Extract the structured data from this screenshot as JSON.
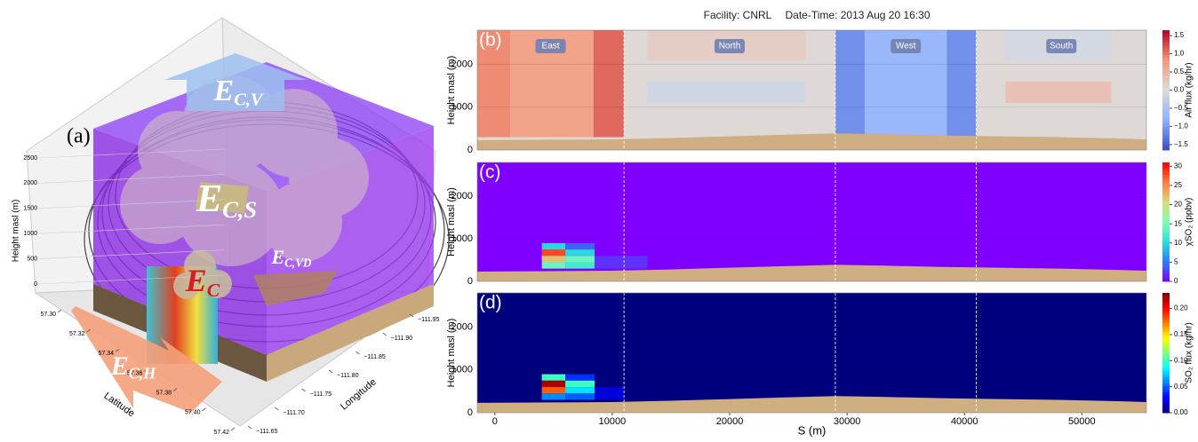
{
  "figure": {
    "facility": "Facility: CNRL",
    "datetime": "Date-Time: 2013 Aug 20 16:30"
  },
  "panel_a": {
    "label": "(a)",
    "zlabel": "Height masl (m)",
    "zticks": [
      0,
      500,
      1000,
      1500,
      2000,
      2500
    ],
    "zlim": [
      0,
      2500
    ],
    "lat_label": "Latitude",
    "lat_ticks": [
      {
        "value": 57.3,
        "label": "57.30"
      },
      {
        "value": 57.32,
        "label": "57.32"
      },
      {
        "value": 57.34,
        "label": "57.34"
      },
      {
        "value": 57.36,
        "label": "57.36"
      },
      {
        "value": 57.38,
        "label": "57.38"
      },
      {
        "value": 57.4,
        "label": "57.40"
      },
      {
        "value": 57.42,
        "label": "57.42"
      }
    ],
    "lat_lim": [
      57.3,
      57.42
    ],
    "lon_label": "Longitude",
    "lon_ticks": [
      {
        "value": -111.95,
        "label": "−111.95"
      },
      {
        "value": -111.9,
        "label": "−111.90"
      },
      {
        "value": -111.85,
        "label": "−111.85"
      },
      {
        "value": -111.8,
        "label": "−111.80"
      },
      {
        "value": -111.75,
        "label": "−111.75"
      },
      {
        "value": -111.7,
        "label": "−111.70"
      },
      {
        "value": -111.65,
        "label": "−111.65"
      }
    ],
    "lon_lim": [
      -111.95,
      -111.65
    ],
    "annotations": [
      {
        "main": "E",
        "sub": "C,V"
      },
      {
        "main": "E",
        "sub": "C,S"
      },
      {
        "main": "E",
        "sub": "C"
      },
      {
        "main": "E",
        "sub": "C,VD"
      },
      {
        "main": "E",
        "sub": "C,H"
      }
    ]
  },
  "sections": {
    "names": [
      "East",
      "North",
      "West",
      "South"
    ],
    "bounds": [
      11000,
      29000,
      41000
    ]
  },
  "terrain": {
    "x": [
      -1500,
      5000,
      10000,
      15000,
      20000,
      25000,
      29000,
      33000,
      38000,
      43000,
      48000,
      53000,
      55500
    ],
    "y": [
      230,
      240,
      250,
      280,
      320,
      360,
      390,
      370,
      340,
      320,
      300,
      270,
      250
    ]
  },
  "chart_data": [
    {
      "type": "heatmap",
      "label": "(b)",
      "ylabel": "Height masl (m)",
      "xlim": [
        -1500,
        55500
      ],
      "ylim": [
        0,
        2800
      ],
      "yticks": [
        0,
        1000,
        2000
      ],
      "grid": true,
      "background_value": 0.05,
      "cells": [
        {
          "x": [
            -1500,
            1300
          ],
          "y": [
            300,
            2800
          ],
          "value": 0.9
        },
        {
          "x": [
            1300,
            8400
          ],
          "y": [
            300,
            2800
          ],
          "value": 0.7
        },
        {
          "x": [
            8400,
            11000
          ],
          "y": [
            300,
            2800
          ],
          "value": 1.1
        },
        {
          "x": [
            13000,
            26500
          ],
          "y": [
            1100,
            1600
          ],
          "value": -0.15
        },
        {
          "x": [
            13000,
            26500
          ],
          "y": [
            2100,
            2800
          ],
          "value": 0.2
        },
        {
          "x": [
            29000,
            31500
          ],
          "y": [
            300,
            2800
          ],
          "value": -1.1
        },
        {
          "x": [
            31500,
            38500
          ],
          "y": [
            300,
            2800
          ],
          "value": -0.7
        },
        {
          "x": [
            38500,
            41000
          ],
          "y": [
            300,
            2800
          ],
          "value": -1.1
        },
        {
          "x": [
            43500,
            52500
          ],
          "y": [
            1100,
            1600
          ],
          "value": 0.35
        },
        {
          "x": [
            43500,
            52500
          ],
          "y": [
            2100,
            2800
          ],
          "value": -0.1
        }
      ],
      "colorbar": {
        "label": "Air flux (kg/hr)",
        "lim": [
          -1.65,
          1.65
        ],
        "colors": [
          "#3b4cc0",
          "#8db0fe",
          "#dddddd",
          "#f49a7b",
          "#b40426"
        ],
        "ticks": [
          {
            "value": -1.5,
            "label": "−1.5"
          },
          {
            "value": -1.0,
            "label": "−1.0"
          },
          {
            "value": -0.5,
            "label": "−0.5"
          },
          {
            "value": 0.0,
            "label": "0.0"
          },
          {
            "value": 0.5,
            "label": "0.5"
          },
          {
            "value": 1.0,
            "label": "1.0"
          },
          {
            "value": 1.5,
            "label": "1.5"
          }
        ]
      }
    },
    {
      "type": "heatmap",
      "label": "(c)",
      "ylabel": "Height masl (m)",
      "xlim": [
        -1500,
        55500
      ],
      "ylim": [
        0,
        2800
      ],
      "yticks": [
        0,
        1000,
        2000
      ],
      "grid": true,
      "background_value": 0,
      "cells": [
        {
          "x": [
            4000,
            6000
          ],
          "y": [
            750,
            900
          ],
          "value": 10
        },
        {
          "x": [
            4000,
            6000
          ],
          "y": [
            600,
            750
          ],
          "value": 28
        },
        {
          "x": [
            4000,
            6000
          ],
          "y": [
            450,
            600
          ],
          "value": 22
        },
        {
          "x": [
            4000,
            6000
          ],
          "y": [
            300,
            450
          ],
          "value": 14
        },
        {
          "x": [
            6000,
            8500
          ],
          "y": [
            750,
            900
          ],
          "value": 4
        },
        {
          "x": [
            6000,
            8500
          ],
          "y": [
            600,
            750
          ],
          "value": 10
        },
        {
          "x": [
            6000,
            8500
          ],
          "y": [
            450,
            600
          ],
          "value": 14
        },
        {
          "x": [
            6000,
            8500
          ],
          "y": [
            300,
            450
          ],
          "value": 12
        },
        {
          "x": [
            8500,
            13000
          ],
          "y": [
            300,
            600
          ],
          "value": 2
        }
      ],
      "colorbar": {
        "label": "χSO₂ (ppbv)",
        "lim": [
          0,
          31
        ],
        "colors": [
          "#8000ff",
          "#2c7ef7",
          "#2adddd",
          "#80ffb4",
          "#d4dd80",
          "#ff7e41",
          "#ff0000"
        ],
        "ticks": [
          0,
          5,
          10,
          15,
          20,
          25,
          30
        ]
      }
    },
    {
      "type": "heatmap",
      "label": "(d)",
      "ylabel": "Height masl (m)",
      "xlabel": "S (m)",
      "xlim": [
        -1500,
        55500
      ],
      "ylim": [
        0,
        2800
      ],
      "yticks": [
        0,
        1000,
        2000
      ],
      "xticks": [
        0,
        10000,
        20000,
        30000,
        40000,
        50000
      ],
      "grid": true,
      "background_value": 0,
      "cells": [
        {
          "x": [
            4000,
            6000
          ],
          "y": [
            750,
            900
          ],
          "value": 0.1
        },
        {
          "x": [
            4000,
            6000
          ],
          "y": [
            600,
            750
          ],
          "value": 0.22
        },
        {
          "x": [
            4000,
            6000
          ],
          "y": [
            450,
            600
          ],
          "value": 0.18
        },
        {
          "x": [
            4000,
            6000
          ],
          "y": [
            300,
            450
          ],
          "value": 0.06
        },
        {
          "x": [
            6000,
            8500
          ],
          "y": [
            750,
            900
          ],
          "value": 0.04
        },
        {
          "x": [
            6000,
            8500
          ],
          "y": [
            600,
            750
          ],
          "value": 0.1
        },
        {
          "x": [
            6000,
            8500
          ],
          "y": [
            450,
            600
          ],
          "value": 0.08
        },
        {
          "x": [
            6000,
            8500
          ],
          "y": [
            300,
            450
          ],
          "value": 0.05
        },
        {
          "x": [
            8500,
            11000
          ],
          "y": [
            300,
            600
          ],
          "value": 0.02
        }
      ],
      "colorbar": {
        "label": "SO₂ flux (kg/hr)",
        "lim": [
          0,
          0.23
        ],
        "colors": [
          "#00007f",
          "#0000ff",
          "#007fff",
          "#00ffff",
          "#7fff7f",
          "#ffff00",
          "#ff7f00",
          "#ff0000",
          "#7f0000"
        ],
        "ticks": [
          {
            "value": 0,
            "label": "0.00"
          },
          {
            "value": 0.05,
            "label": "0.05"
          },
          {
            "value": 0.1,
            "label": "0.10"
          },
          {
            "value": 0.15,
            "label": "0.15"
          },
          {
            "value": 0.2,
            "label": "0.20"
          }
        ]
      }
    }
  ]
}
